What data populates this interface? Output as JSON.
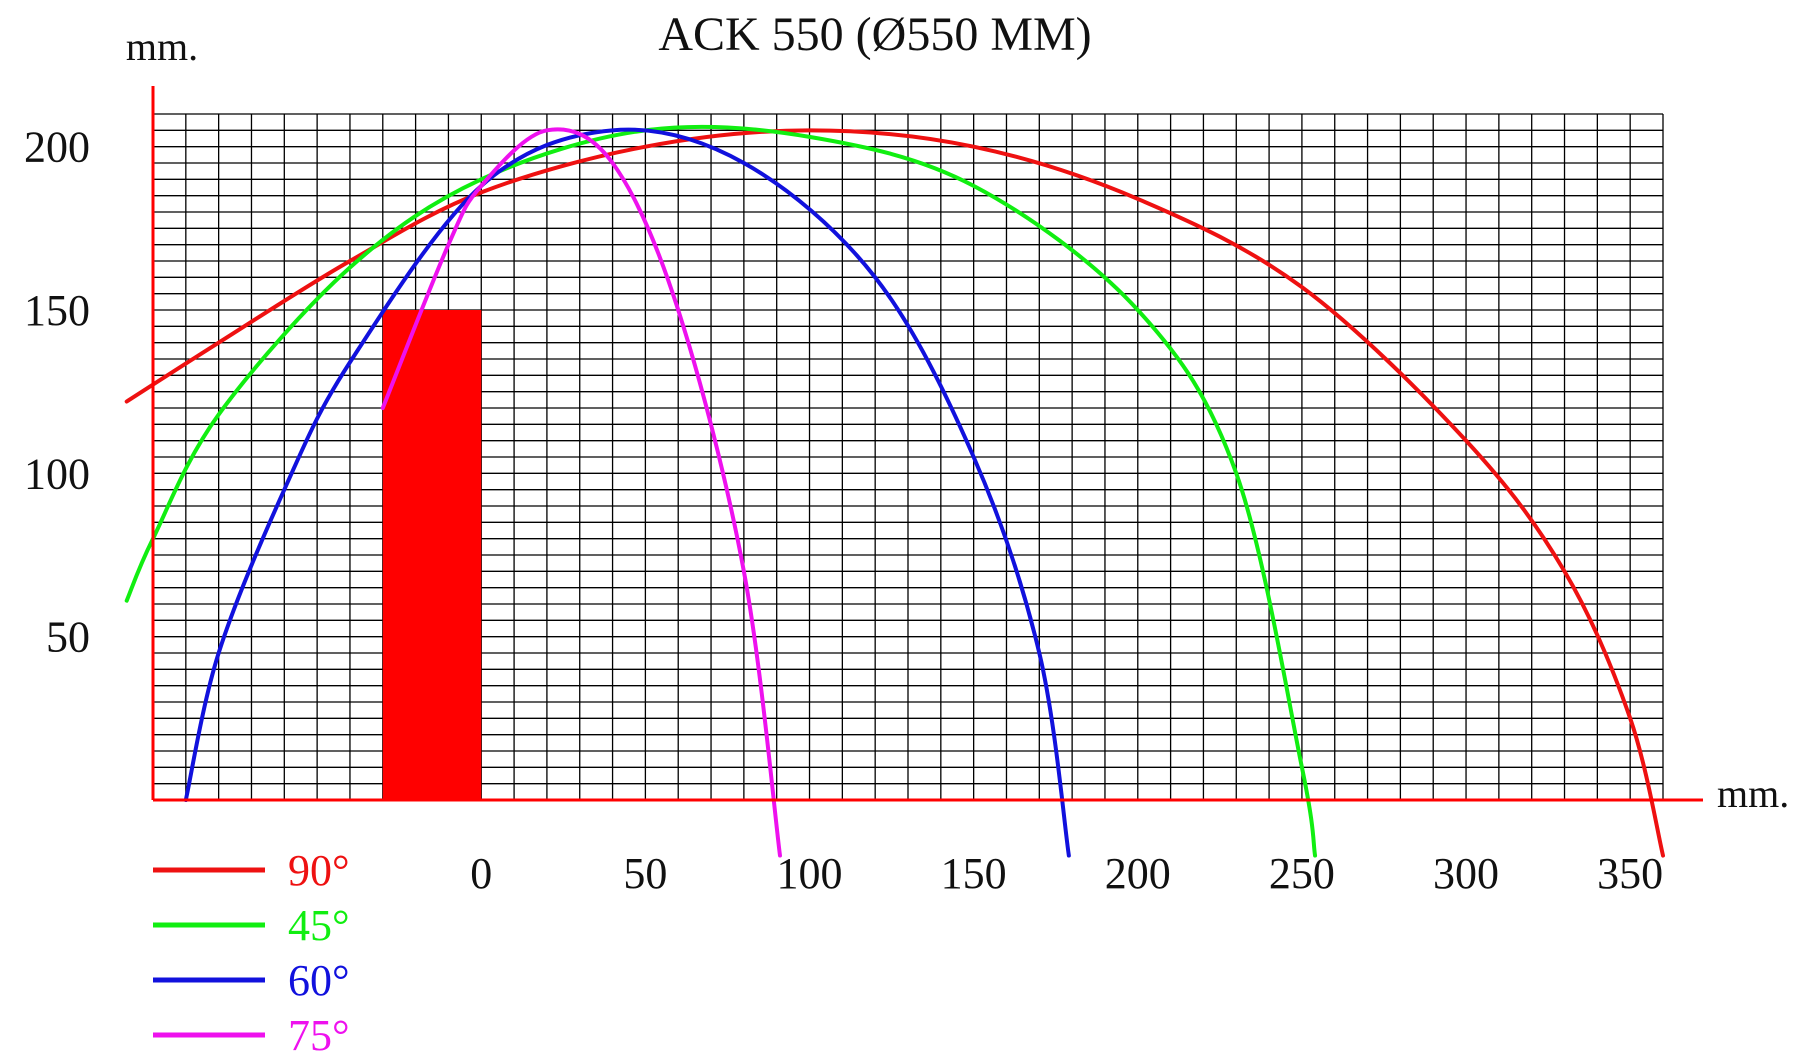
{
  "chart_data": {
    "type": "line",
    "title": "ACK 550 (Ø550 MM)",
    "xlabel": "mm.",
    "ylabel": "mm.",
    "xlim": [
      -100,
      360
    ],
    "ylim": [
      0,
      210
    ],
    "grid": true,
    "legend_position": "bottom-left",
    "x_ticks": [
      {
        "value": 0,
        "label": "0"
      },
      {
        "value": 50,
        "label": "50"
      },
      {
        "value": 100,
        "label": "100"
      },
      {
        "value": 150,
        "label": "150"
      },
      {
        "value": 200,
        "label": "200"
      },
      {
        "value": 250,
        "label": "250"
      },
      {
        "value": 300,
        "label": "300"
      },
      {
        "value": 350,
        "label": "350"
      }
    ],
    "y_ticks": [
      {
        "value": 50,
        "label": "50"
      },
      {
        "value": 100,
        "label": "100"
      },
      {
        "value": 150,
        "label": "150"
      },
      {
        "value": 200,
        "label": "200"
      }
    ],
    "block": {
      "x0": -30,
      "x1": 0,
      "y0": 0,
      "y1": 150,
      "color": "#ff0000"
    },
    "series": [
      {
        "name": "90°",
        "color": "#ee1111",
        "x": [
          -108,
          -80,
          -40,
          0,
          50,
          100,
          150,
          200,
          250,
          300,
          330,
          350,
          360
        ],
        "y": [
          122,
          140,
          165,
          186,
          200,
          205,
          200,
          184,
          157,
          110,
          70,
          25,
          -17
        ]
      },
      {
        "name": "45°",
        "color": "#11ee11",
        "x": [
          -108,
          -100,
          -80,
          -40,
          0,
          50,
          100,
          150,
          200,
          230,
          250,
          254
        ],
        "y": [
          61,
          80,
          118,
          163,
          190,
          205,
          203,
          188,
          150,
          100,
          10,
          -17
        ]
      },
      {
        "name": "60°",
        "color": "#1111dd",
        "x": [
          -90,
          -80,
          -60,
          -40,
          0,
          40,
          80,
          120,
          150,
          170,
          179
        ],
        "y": [
          0,
          45,
          95,
          134,
          188,
          205,
          195,
          160,
          105,
          45,
          -17
        ]
      },
      {
        "name": "75°",
        "color": "#ee11ee",
        "x": [
          -30,
          -10,
          0,
          20,
          40,
          60,
          80,
          91
        ],
        "y": [
          120,
          170,
          188,
          205,
          195,
          150,
          70,
          -17
        ]
      }
    ]
  }
}
